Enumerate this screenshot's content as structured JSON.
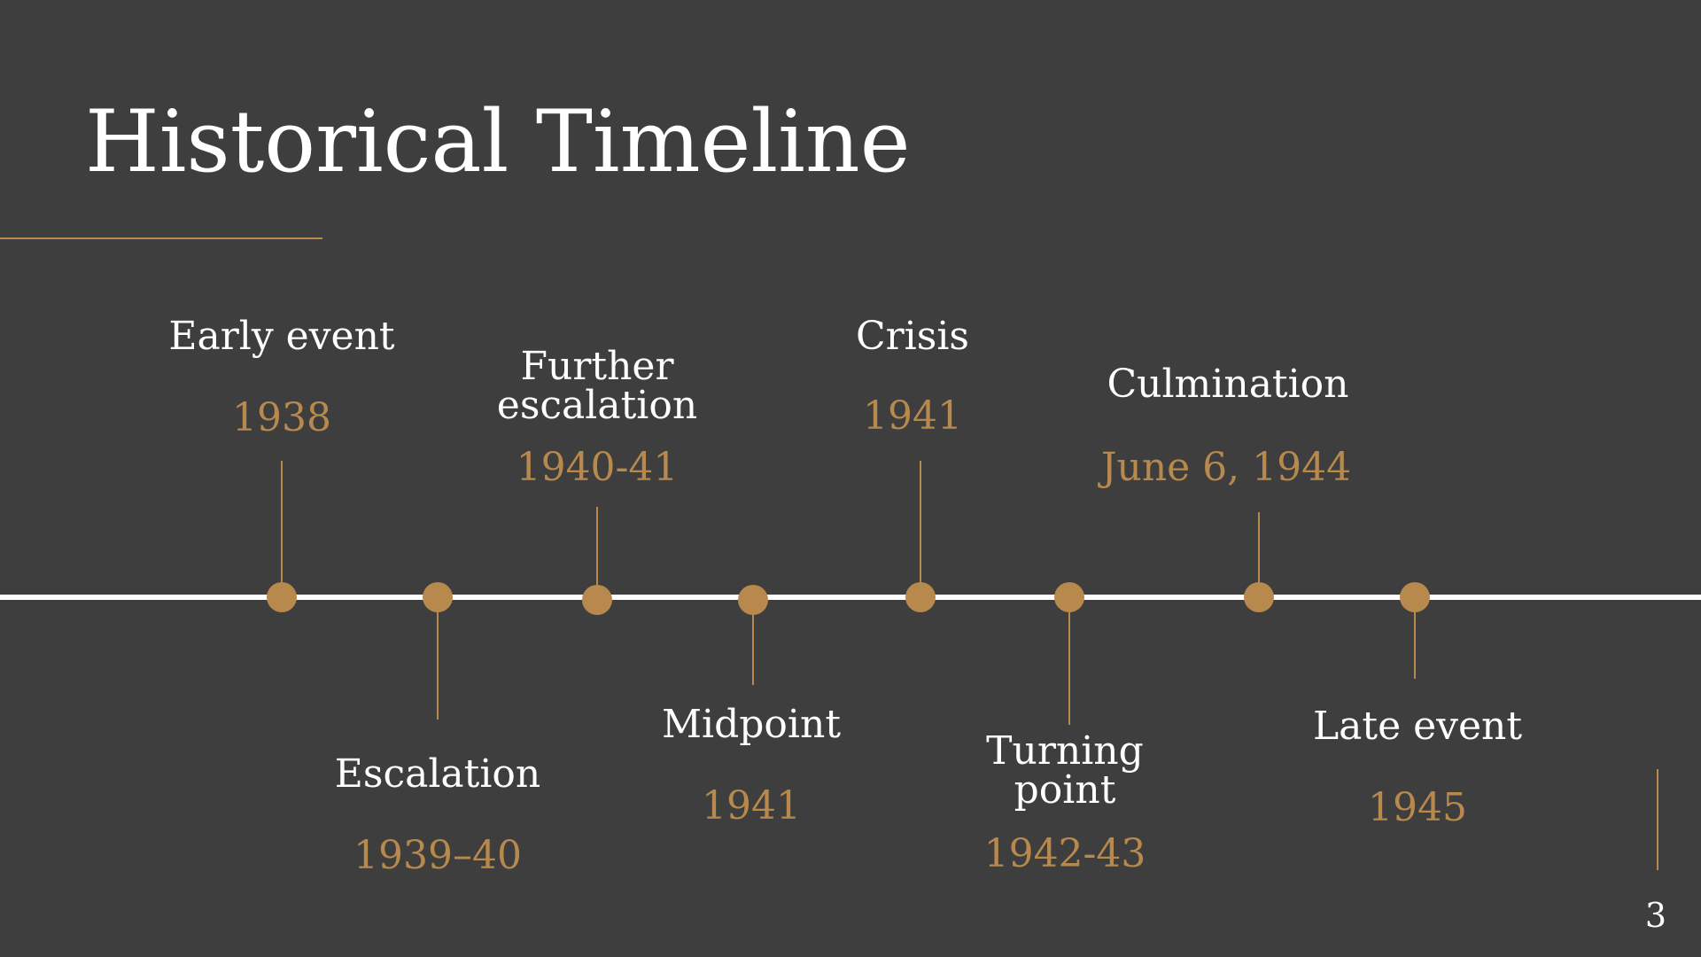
{
  "slide": {
    "title": "Historical Timeline",
    "page_number": "3"
  },
  "colors": {
    "background": "#3e3e3e",
    "accent": "#b8894d",
    "text": "#ffffff"
  },
  "events": [
    {
      "label": "Early event",
      "date": "1938",
      "side": "above"
    },
    {
      "label": "Escalation",
      "date": "1939–40",
      "side": "below"
    },
    {
      "label": "Further escalation",
      "date": "1940-41",
      "side": "above"
    },
    {
      "label": "Midpoint",
      "date": "1941",
      "side": "below"
    },
    {
      "label": "Crisis",
      "date": "1941",
      "side": "above"
    },
    {
      "label": "Turning point",
      "date": "1942-43",
      "side": "below"
    },
    {
      "label": "Culmination",
      "date": "June 6, 1944",
      "side": "above"
    },
    {
      "label": "Late event",
      "date": "1945",
      "side": "below"
    }
  ]
}
